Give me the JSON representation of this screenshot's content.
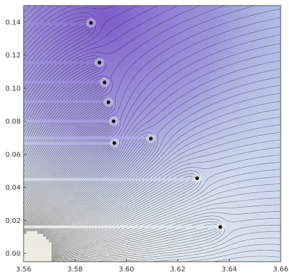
{
  "chart_data": {
    "type": "contour",
    "title": "",
    "xlabel": "",
    "ylabel": "",
    "xlim": [
      3.56,
      3.66
    ],
    "ylim": [
      -0.005,
      0.15
    ],
    "x_ticks": [
      3.56,
      3.58,
      3.6,
      3.62,
      3.64,
      3.66
    ],
    "x_tick_labels": [
      "3.56",
      "3.58",
      "3.60",
      "3.62",
      "3.64",
      "3.66"
    ],
    "y_ticks": [
      0.0,
      0.02,
      0.04,
      0.06,
      0.08,
      0.1,
      0.12,
      0.14
    ],
    "y_tick_labels": [
      "0.00",
      "0.02",
      "0.04",
      "0.06",
      "0.08",
      "0.10",
      "0.12",
      "0.14"
    ],
    "grid": false,
    "legend": "none",
    "colormap": [
      "#f2efe0",
      "#dfe6ee",
      "#aab8de",
      "#8e7fd8",
      "#7a58c8"
    ],
    "points": [
      {
        "x": 3.5862,
        "y": 0.1395
      },
      {
        "x": 3.5895,
        "y": 0.1155
      },
      {
        "x": 3.5915,
        "y": 0.1035
      },
      {
        "x": 3.593,
        "y": 0.0915
      },
      {
        "x": 3.595,
        "y": 0.08
      },
      {
        "x": 3.5953,
        "y": 0.0668
      },
      {
        "x": 3.6095,
        "y": 0.0695
      },
      {
        "x": 3.6275,
        "y": 0.0455
      },
      {
        "x": 3.6365,
        "y": 0.016
      }
    ]
  }
}
